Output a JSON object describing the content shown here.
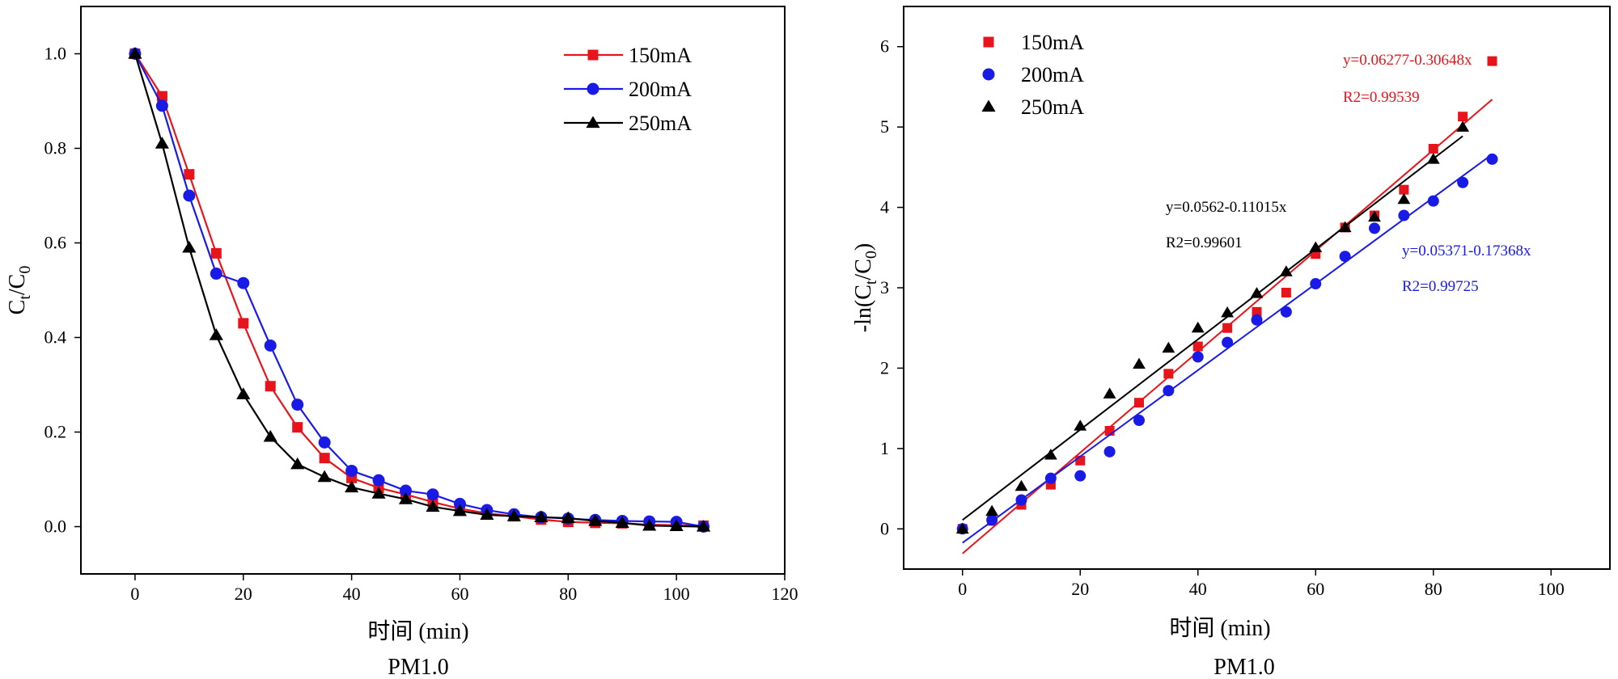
{
  "colors": {
    "s150": "#e8141b",
    "s200": "#1a1ae6",
    "s250": "#000000"
  },
  "chart_data": [
    {
      "type": "line",
      "title": "",
      "caption": "PM1.0",
      "xlabel": "时间 (min)",
      "ylabel_main": "C",
      "ylabel_sub1": "t",
      "ylabel_mid": "/C",
      "ylabel_sub2": "0",
      "xlim": [
        -10,
        120
      ],
      "ylim": [
        -0.1,
        1.1
      ],
      "xticks": [
        0,
        20,
        40,
        60,
        80,
        100,
        120
      ],
      "xtick_labels": [
        "0",
        "20",
        "40",
        "60",
        "80",
        "100",
        "120"
      ],
      "yticks": [
        0.0,
        0.2,
        0.4,
        0.6,
        0.8,
        1.0
      ],
      "ytick_labels": [
        "0.0",
        "0.2",
        "0.4",
        "0.6",
        "0.8",
        "1.0"
      ],
      "legend_position": "top-right",
      "x": [
        0,
        5,
        10,
        15,
        20,
        25,
        30,
        35,
        40,
        45,
        50,
        55,
        60,
        65,
        70,
        75,
        80,
        85,
        90,
        95,
        100,
        105
      ],
      "series": [
        {
          "name": "150mA",
          "marker": "square",
          "color_key": "s150",
          "values": [
            1.0,
            0.91,
            0.745,
            0.578,
            0.43,
            0.297,
            0.21,
            0.145,
            0.103,
            0.082,
            0.068,
            0.052,
            0.038,
            0.028,
            0.022,
            0.015,
            0.01,
            0.008,
            0.007,
            0.004,
            0.003,
            0.002
          ]
        },
        {
          "name": "200mA",
          "marker": "circle",
          "color_key": "s200",
          "values": [
            1.0,
            0.89,
            0.7,
            0.535,
            0.515,
            0.383,
            0.258,
            0.178,
            0.118,
            0.098,
            0.076,
            0.068,
            0.048,
            0.035,
            0.026,
            0.02,
            0.017,
            0.014,
            0.012,
            0.011,
            0.01,
            0.0
          ]
        },
        {
          "name": "250mA",
          "marker": "triangle",
          "color_key": "s250",
          "values": [
            1.0,
            0.81,
            0.59,
            0.405,
            0.28,
            0.19,
            0.132,
            0.105,
            0.083,
            0.07,
            0.058,
            0.042,
            0.033,
            0.025,
            0.022,
            0.02,
            0.018,
            0.012,
            0.008,
            0.002,
            0.001,
            0.0
          ]
        }
      ]
    },
    {
      "type": "scatter",
      "title": "",
      "caption": "PM1.0",
      "xlabel": "时间 (min)",
      "ylabel_main": "-ln(C",
      "ylabel_sub1": "t",
      "ylabel_mid": "/C",
      "ylabel_sub2": "0",
      "ylabel_end": ")",
      "xlim": [
        -10,
        110
      ],
      "ylim": [
        -0.5,
        6.5
      ],
      "xticks": [
        0,
        20,
        40,
        60,
        80,
        100
      ],
      "xtick_labels": [
        "0",
        "20",
        "40",
        "60",
        "80",
        "100"
      ],
      "yticks": [
        0,
        1,
        2,
        3,
        4,
        5,
        6
      ],
      "ytick_labels": [
        "0",
        "1",
        "2",
        "3",
        "4",
        "5",
        "6"
      ],
      "legend_position": "top-left",
      "series": [
        {
          "name": "150mA",
          "marker": "square",
          "color_key": "s150",
          "x": [
            0,
            5,
            10,
            15,
            20,
            25,
            30,
            35,
            40,
            45,
            50,
            55,
            60,
            65,
            70,
            75,
            80,
            85,
            90
          ],
          "values": [
            0.0,
            0.1,
            0.3,
            0.55,
            0.85,
            1.22,
            1.57,
            1.93,
            2.27,
            2.5,
            2.7,
            2.94,
            3.42,
            3.75,
            3.9,
            4.22,
            4.73,
            5.13,
            5.82
          ],
          "fit": {
            "intercept": -0.30648,
            "slope": 0.06277,
            "x_range": [
              0,
              90
            ],
            "equation": "y=0.06277-0.30648x",
            "r2": "R2=0.99539"
          }
        },
        {
          "name": "200mA",
          "marker": "circle",
          "color_key": "s200",
          "x": [
            0,
            5,
            10,
            15,
            20,
            25,
            30,
            35,
            40,
            45,
            50,
            55,
            60,
            65,
            70,
            75,
            80,
            85,
            90
          ],
          "values": [
            0.0,
            0.11,
            0.36,
            0.63,
            0.66,
            0.96,
            1.35,
            1.72,
            2.14,
            2.32,
            2.6,
            2.7,
            3.05,
            3.39,
            3.74,
            3.9,
            4.08,
            4.31,
            4.6
          ],
          "fit": {
            "intercept": -0.17368,
            "slope": 0.05371,
            "x_range": [
              0,
              90
            ],
            "equation": "y=0.05371-0.17368x",
            "r2": "R2=0.99725"
          }
        },
        {
          "name": "250mA",
          "marker": "triangle",
          "color_key": "s250",
          "x": [
            0,
            5,
            10,
            15,
            20,
            25,
            30,
            35,
            40,
            45,
            50,
            55,
            60,
            65,
            70,
            75,
            80,
            85
          ],
          "values": [
            0.0,
            0.22,
            0.53,
            0.92,
            1.28,
            1.68,
            2.05,
            2.25,
            2.5,
            2.69,
            2.93,
            3.2,
            3.5,
            3.75,
            3.88,
            4.1,
            4.6,
            5.0
          ],
          "fit": {
            "intercept": 0.11015,
            "slope": 0.0562,
            "x_range": [
              0,
              85
            ],
            "equation": "y=0.0562-0.11015x",
            "r2": "R2=0.99601"
          }
        }
      ]
    }
  ]
}
